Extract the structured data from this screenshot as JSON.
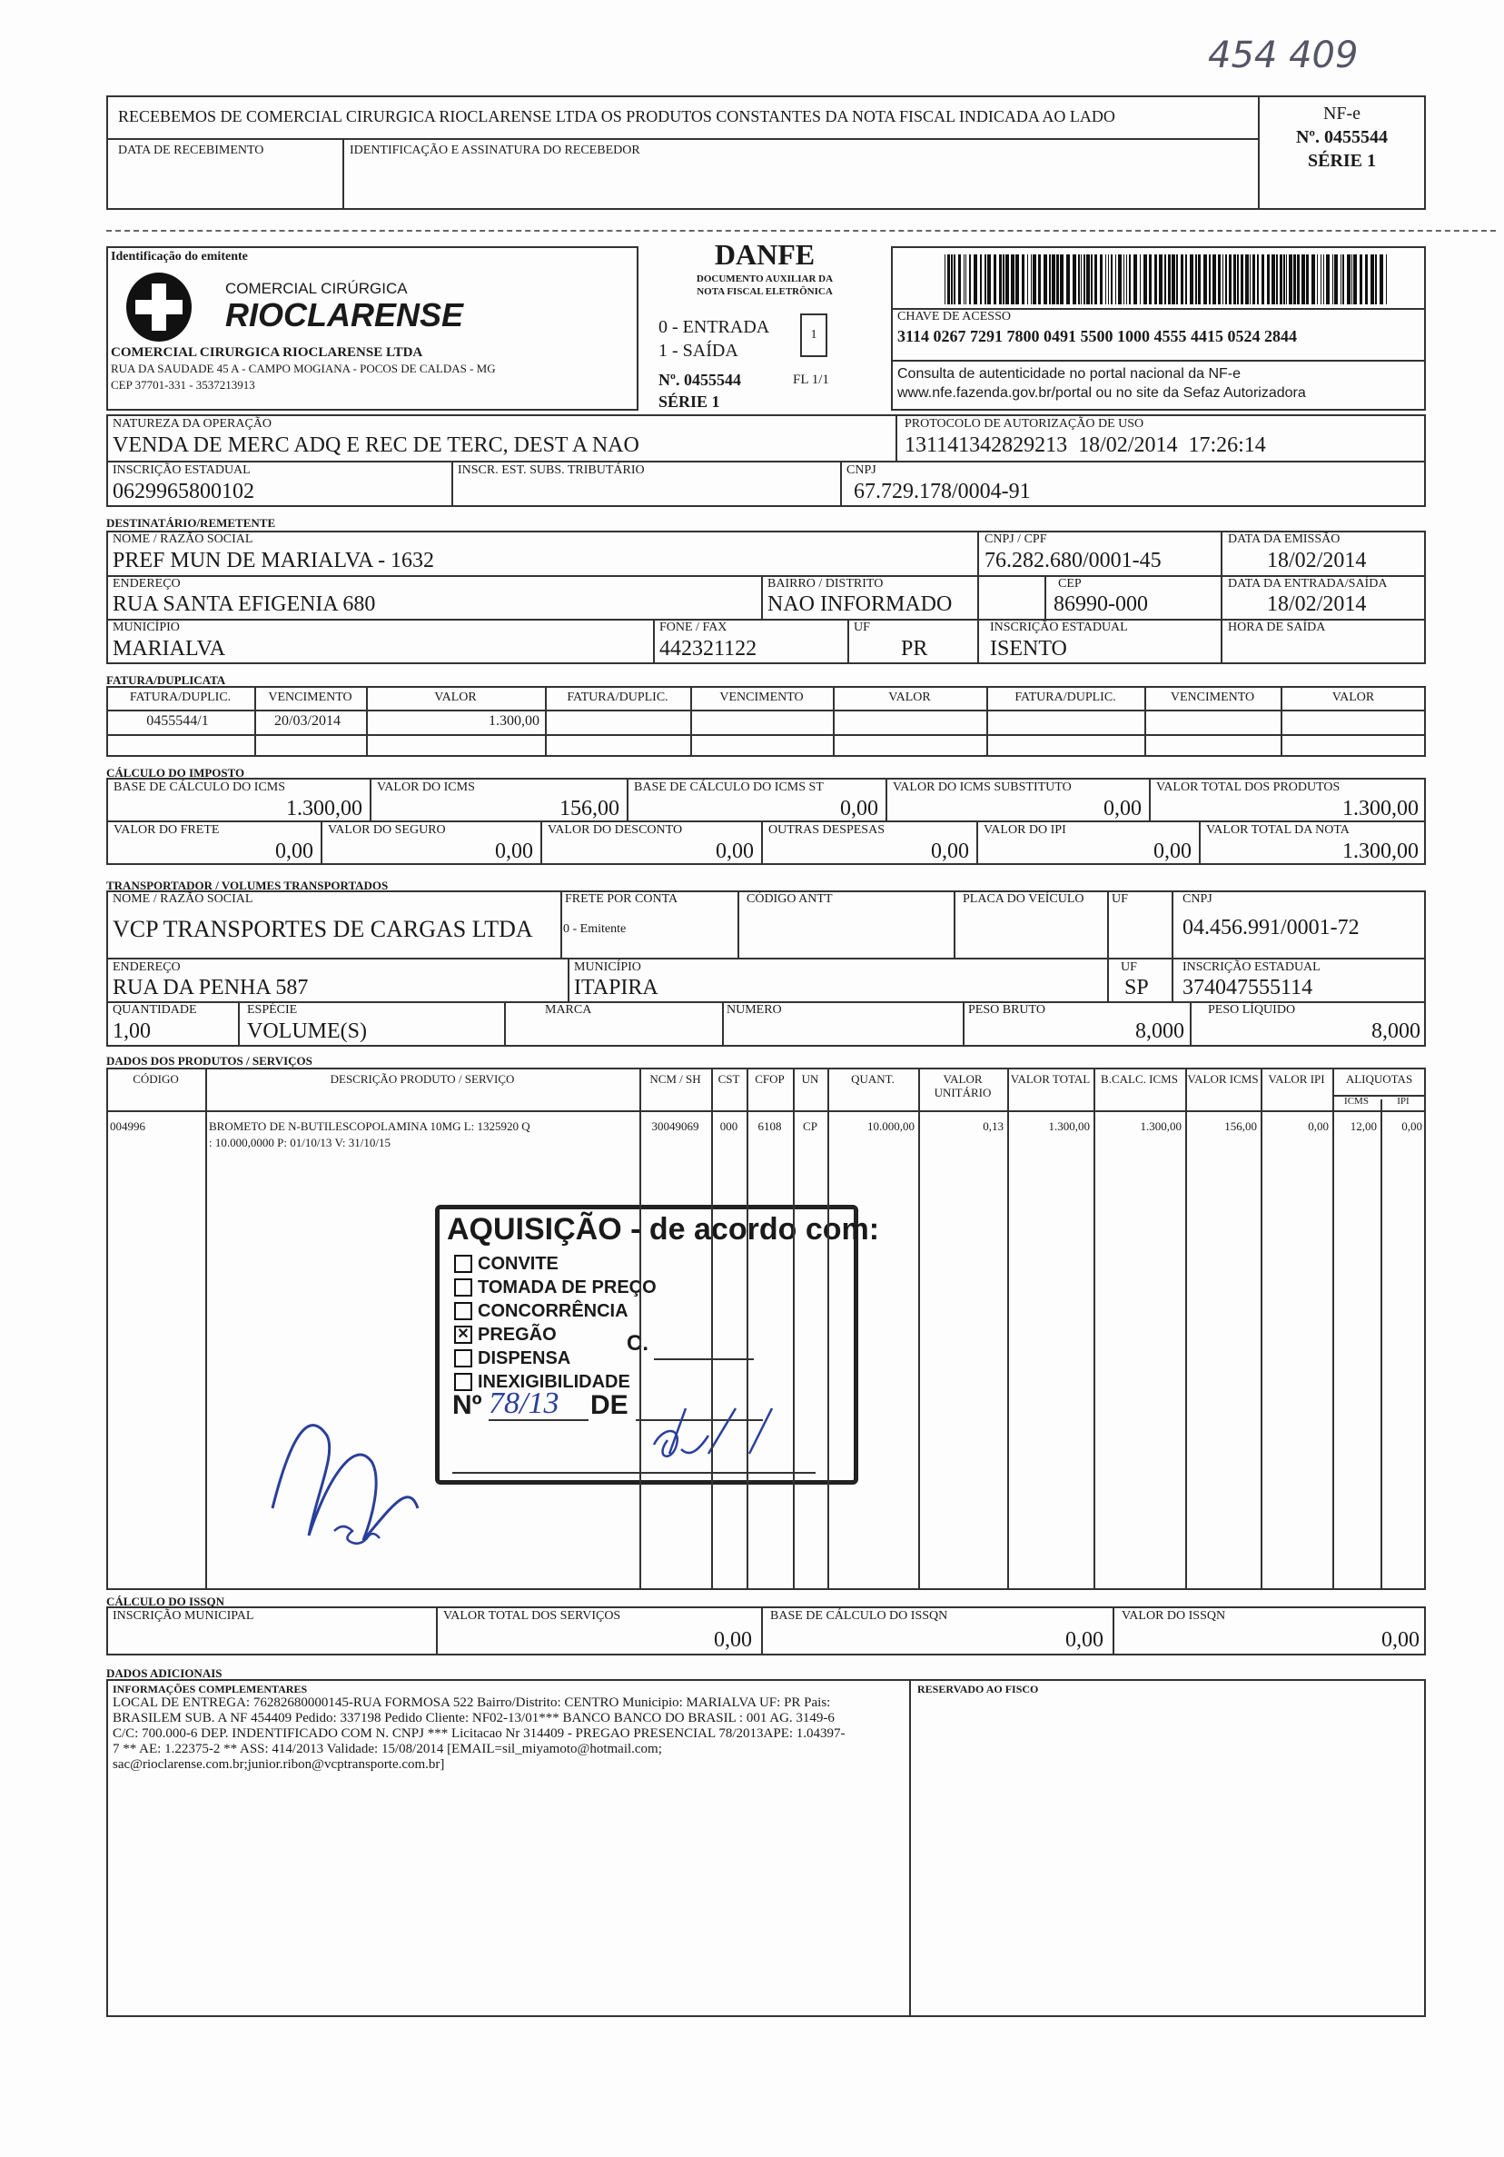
{
  "handwritten_number": "454 409",
  "receipt": {
    "text": "RECEBEMOS DE COMERCIAL CIRURGICA RIOCLARENSE LTDA OS PRODUTOS CONSTANTES DA NOTA FISCAL INDICADA AO LADO",
    "date_label": "DATA DE RECEBIMENTO",
    "sign_label": "IDENTIFICAÇÃO E ASSINATURA DO RECEBEDOR",
    "nfe": "NF-e",
    "number": "Nº. 0455544",
    "serie": "SÉRIE 1"
  },
  "emitente": {
    "label": "Identificação do emitente",
    "logo_top": "COMERCIAL CIRÚRGICA",
    "logo_main": "RIOCLARENSE",
    "name": "COMERCIAL CIRURGICA RIOCLARENSE LTDA",
    "address": "RUA DA SAUDADE 45 A - CAMPO MOGIANA - POCOS DE CALDAS - MG",
    "cep": "CEP 37701-331 - 3537213913"
  },
  "danfe": {
    "title": "DANFE",
    "sub1": "DOCUMENTO AUXILIAR DA",
    "sub2": "NOTA FISCAL ELETRÔNICA",
    "entrada": "0 - ENTRADA",
    "saida": "1 - SAÍDA",
    "tipo": "1",
    "numero": "Nº. 0455544",
    "folha": "FL 1/1",
    "serie": "SÉRIE 1"
  },
  "chave": {
    "label": "CHAVE DE ACESSO",
    "value": "3114 0267 7291 7800 0491 5500 1000 4555 4415 0524 2844",
    "consulta1": "Consulta de autenticidade no portal nacional da NF-e",
    "consulta2": "www.nfe.fazenda.gov.br/portal ou no site da Sefaz Autorizadora"
  },
  "natureza": {
    "label": "NATUREZA DA OPERAÇÃO",
    "value": "VENDA DE MERC ADQ E REC DE TERC, DEST A NAO",
    "protocolo_label": "PROTOCOLO DE AUTORIZAÇÃO DE USO",
    "protocolo": "131141342829213  18/02/2014  17:26:14"
  },
  "inscricao": {
    "ie_label": "INSCRIÇÃO ESTADUAL",
    "ie": "0629965800102",
    "st_label": "INSCR. EST. SUBS. TRIBUTÁRIO",
    "cnpj_label": "CNPJ",
    "cnpj": "67.729.178/0004-91"
  },
  "destinatario": {
    "section": "DESTINATÁRIO/REMETENTE",
    "nome_label": "NOME / RAZÃO SOCIAL",
    "nome": "PREF MUN DE MARIALVA - 1632",
    "cnpj_label": "CNPJ / CPF",
    "cnpj": "76.282.680/0001-45",
    "emissao_label": "DATA DA EMISSÃO",
    "emissao": "18/02/2014",
    "end_label": "ENDEREÇO",
    "endereco": "RUA SANTA EFIGENIA 680",
    "bairro_label": "BAIRRO / DISTRITO",
    "bairro": "NAO INFORMADO",
    "cep_label": "CEP",
    "cep": "86990-000",
    "entrada_label": "DATA DA ENTRADA/SAÍDA",
    "entrada": "18/02/2014",
    "mun_label": "MUNICÍPIO",
    "municipio": "MARIALVA",
    "fone_label": "FONE / FAX",
    "fone": "442321122",
    "uf_label": "UF",
    "uf": "PR",
    "ie_label": "INSCRIÇÃO ESTADUAL",
    "ie": "ISENTO",
    "hora_label": "HORA DE SAÍDA"
  },
  "fatura": {
    "section": "FATURA/DUPLICATA",
    "headers": [
      "FATURA/DUPLIC.",
      "VENCIMENTO",
      "VALOR",
      "FATURA/DUPLIC.",
      "VENCIMENTO",
      "VALOR",
      "FATURA/DUPLIC.",
      "VENCIMENTO",
      "VALOR"
    ],
    "rows": [
      [
        "0455544/1",
        "20/03/2014",
        "1.300,00"
      ]
    ]
  },
  "imposto": {
    "section": "CÁLCULO DO IMPOSTO",
    "fields": [
      {
        "label": "BASE DE CÁLCULO DO ICMS",
        "value": "1.300,00"
      },
      {
        "label": "VALOR DO ICMS",
        "value": "156,00"
      },
      {
        "label": "BASE DE CÁLCULO DO ICMS ST",
        "value": "0,00"
      },
      {
        "label": "VALOR DO ICMS SUBSTITUTO",
        "value": "0,00"
      },
      {
        "label": "VALOR TOTAL DOS PRODUTOS",
        "value": "1.300,00"
      },
      {
        "label": "VALOR DO FRETE",
        "value": "0,00"
      },
      {
        "label": "VALOR DO SEGURO",
        "value": "0,00"
      },
      {
        "label": "VALOR DO DESCONTO",
        "value": "0,00"
      },
      {
        "label": "OUTRAS DESPESAS",
        "value": "0,00"
      },
      {
        "label": "VALOR DO IPI",
        "value": "0,00"
      },
      {
        "label": "VALOR TOTAL DA NOTA",
        "value": "1.300,00"
      }
    ]
  },
  "transportador": {
    "section": "TRANSPORTADOR / VOLUMES TRANSPORTADOS",
    "nome_label": "NOME / RAZÃO SOCIAL",
    "nome": "VCP TRANSPORTES DE CARGAS LTDA",
    "frete_label": "FRETE POR CONTA",
    "frete": "0 - Emitente",
    "antt_label": "CÓDIGO ANTT",
    "placa_label": "PLACA DO VEÍCULO",
    "uf_label": "UF",
    "cnpj_label": "CNPJ",
    "cnpj": "04.456.991/0001-72",
    "end_label": "ENDEREÇO",
    "endereco": "RUA DA PENHA 587",
    "mun_label": "MUNICÍPIO",
    "municipio": "ITAPIRA",
    "uf2_label": "UF",
    "uf2": "SP",
    "ie_label": "INSCRIÇÃO ESTADUAL",
    "ie": "374047555114",
    "qtd_label": "QUANTIDADE",
    "qtd": "1,00",
    "esp_label": "ESPÉCIE",
    "especie": "VOLUME(S)",
    "marca_label": "MARCA",
    "num_label": "NUMERO",
    "bruto_label": "PESO BRUTO",
    "bruto": "8,000",
    "liquido_label": "PESO LÍQUIDO",
    "liquido": "8,000"
  },
  "produtos": {
    "section": "DADOS DOS PRODUTOS / SERVIÇOS",
    "headers": [
      "CÓDIGO",
      "DESCRIÇÃO PRODUTO / SERVIÇO",
      "NCM / SH",
      "CST",
      "CFOP",
      "UN",
      "QUANT.",
      "VALOR UNITÁRIO",
      "VALOR TOTAL",
      "B.CALC. ICMS",
      "VALOR ICMS",
      "VALOR IPI",
      "ALIQUOTAS",
      "ICMS",
      "IPI"
    ],
    "rows": [
      {
        "codigo": "004996",
        "descricao": "BROMETO DE N-BUTILESCOPOLAMINA 10MG  L: 1325920 Q",
        "descricao2": ": 10.000,0000 P: 01/10/13 V: 31/10/15",
        "ncm": "30049069",
        "cst": "000",
        "cfop": "6108",
        "un": "CP",
        "quant": "10.000,00",
        "unit": "0,13",
        "total": "1.300,00",
        "bc": "1.300,00",
        "icms": "156,00",
        "ipi": "0,00",
        "aliq_icms": "12,00",
        "aliq_ipi": "0,00"
      }
    ]
  },
  "stamp": {
    "title": "AQUISIÇÃO - de acordo com:",
    "options": [
      {
        "label": "CONVITE",
        "checked": false
      },
      {
        "label": "TOMADA DE PREÇO",
        "checked": false
      },
      {
        "label": "CONCORRÊNCIA",
        "checked": false
      },
      {
        "label": "PREGÃO",
        "checked": true
      },
      {
        "label": "DISPENSA",
        "checked": false
      },
      {
        "label": "INEXIGIBILIDADE",
        "checked": false
      }
    ],
    "c_label": "C.",
    "no_label": "Nº",
    "no_value": "78/13",
    "de_label": "DE"
  },
  "issqn": {
    "section": "CÁLCULO DO ISSQN",
    "im_label": "INSCRIÇÃO MUNICIPAL",
    "servicos_label": "VALOR TOTAL DOS SERVIÇOS",
    "servicos": "0,00",
    "base_label": "BASE DE CÁLCULO DO ISSQN",
    "base": "0,00",
    "valor_label": "VALOR DO ISSQN",
    "valor": "0,00"
  },
  "adicionais": {
    "section": "DADOS ADICIONAIS",
    "info_label": "INFORMAÇÕES COMPLEMENTARES",
    "lines": [
      "LOCAL DE ENTREGA: 76282680000145-RUA FORMOSA 522  Bairro/Distrito: CENTRO Municipio: MARIALVA UF: PR Pais:",
      "BRASILEM SUB. A NF 454409 Pedido: 337198 Pedido Cliente: NF02-13/01*** BANCO BANCO DO BRASIL : 001 AG. 3149-6",
      "C/C: 700.000-6 DEP. INDENTIFICADO COM N. CNPJ *** Licitacao Nr 314409 - PREGAO PRESENCIAL 78/2013APE: 1.04397-",
      "7  **  AE: 1.22375-2  **  ASS: 414/2013  Validade: 15/08/2014  [EMAIL=sil_miyamoto@hotmail.com;",
      "sac@rioclarense.com.br;junior.ribon@vcptransporte.com.br]"
    ],
    "fisco_label": "RESERVADO AO FISCO"
  }
}
